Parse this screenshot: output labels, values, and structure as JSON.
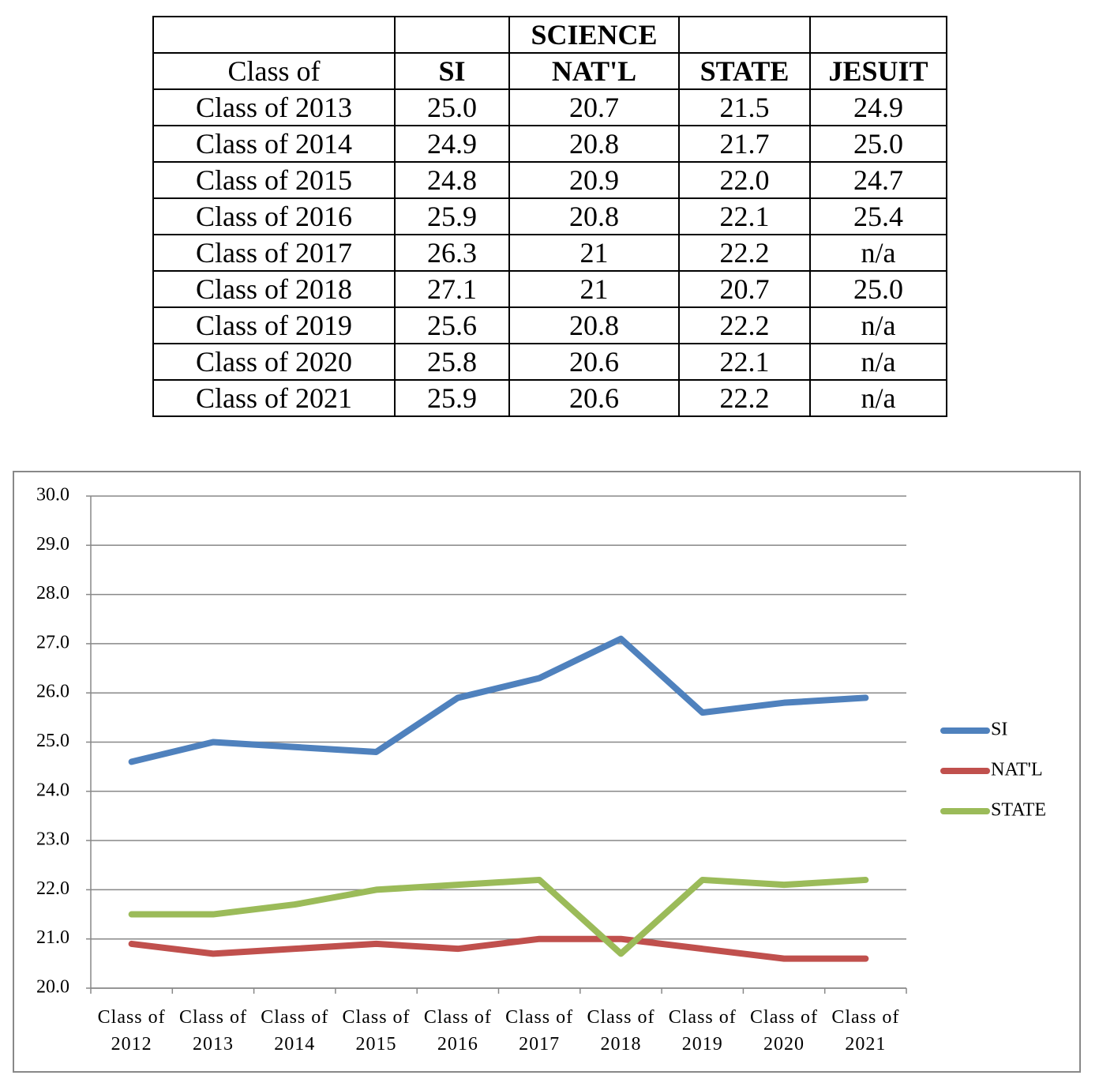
{
  "table": {
    "header_top": "SCIENCE",
    "columns": [
      "Class of",
      "SI",
      "NAT'L",
      "STATE",
      "JESUIT"
    ],
    "rows": [
      [
        "Class of 2013",
        "25.0",
        "20.7",
        "21.5",
        "24.9"
      ],
      [
        "Class of 2014",
        "24.9",
        "20.8",
        "21.7",
        "25.0"
      ],
      [
        "Class of 2015",
        "24.8",
        "20.9",
        "22.0",
        "24.7"
      ],
      [
        "Class of 2016",
        "25.9",
        "20.8",
        "22.1",
        "25.4"
      ],
      [
        "Class of 2017",
        "26.3",
        "21",
        "22.2",
        "n/a"
      ],
      [
        "Class of 2018",
        "27.1",
        "21",
        "20.7",
        "25.0"
      ],
      [
        "Class of 2019",
        "25.6",
        "20.8",
        "22.2",
        "n/a"
      ],
      [
        "Class of 2020",
        "25.8",
        "20.6",
        "22.1",
        "n/a"
      ],
      [
        "Class of 2021",
        "25.9",
        "20.6",
        "22.2",
        "n/a"
      ]
    ]
  },
  "chart_data": {
    "type": "line",
    "categories": [
      "Class of 2012",
      "Class of 2013",
      "Class of 2014",
      "Class of 2015",
      "Class of 2016",
      "Class of 2017",
      "Class of 2018",
      "Class of 2019",
      "Class of 2020",
      "Class of 2021"
    ],
    "series": [
      {
        "name": "SI",
        "color": "#4f81bd",
        "values": [
          24.6,
          25.0,
          24.9,
          24.8,
          25.9,
          26.3,
          27.1,
          25.6,
          25.8,
          25.9
        ]
      },
      {
        "name": "NAT'L",
        "color": "#c0504d",
        "values": [
          20.9,
          20.7,
          20.8,
          20.9,
          20.8,
          21.0,
          21.0,
          20.8,
          20.6,
          20.6
        ]
      },
      {
        "name": "STATE",
        "color": "#9bbb59",
        "values": [
          21.5,
          21.5,
          21.7,
          22.0,
          22.1,
          22.2,
          20.7,
          22.2,
          22.1,
          22.2
        ]
      }
    ],
    "ylim": [
      20,
      30
    ],
    "yticks": [
      {
        "value": 20,
        "label": "20.0"
      },
      {
        "value": 21,
        "label": "21.0"
      },
      {
        "value": 22,
        "label": "22.0"
      },
      {
        "value": 23,
        "label": "23.0"
      },
      {
        "value": 24,
        "label": "24.0"
      },
      {
        "value": 25,
        "label": "25.0"
      },
      {
        "value": 26,
        "label": "26.0"
      },
      {
        "value": 27,
        "label": "27.0"
      },
      {
        "value": 28,
        "label": "28.0"
      },
      {
        "value": 29,
        "label": "29.0"
      },
      {
        "value": 30,
        "label": "30.0"
      }
    ],
    "grid": true,
    "legend": "right"
  }
}
